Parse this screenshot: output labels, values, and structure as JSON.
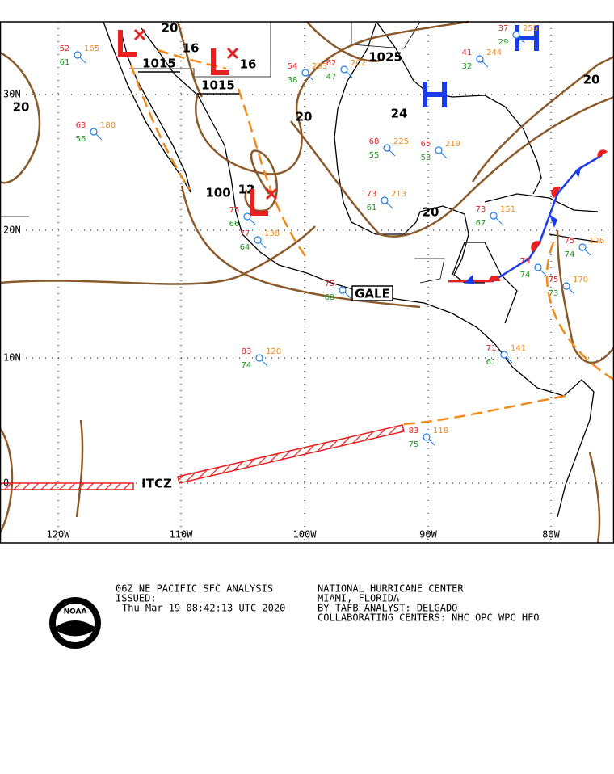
{
  "map": {
    "lat_labels": [
      "30N",
      "20N",
      "10N",
      "0"
    ],
    "lon_labels": [
      "120W",
      "110W",
      "100W",
      "90W",
      "80W"
    ],
    "isobar_labels": [
      "20",
      "16",
      "16",
      "20",
      "20",
      "24",
      "20",
      "20",
      "1025",
      "100",
      "12"
    ],
    "pressure_centers": [
      {
        "type": "L",
        "value": "1015"
      },
      {
        "type": "L",
        "value": "1015"
      },
      {
        "type": "L"
      },
      {
        "type": "H"
      },
      {
        "type": "H"
      }
    ],
    "feature_labels": [
      "ITCZ",
      "GALE"
    ],
    "stations": [
      {
        "temp": "63",
        "pressure": "180",
        "dew": "56"
      },
      {
        "temp": "75",
        "dew": "66"
      },
      {
        "temp": "77",
        "pressure": "138",
        "dew": "64"
      },
      {
        "temp": "83",
        "pressure": "120",
        "dew": "74"
      },
      {
        "temp": "75",
        "dew": "68"
      },
      {
        "temp": "73",
        "pressure": "213",
        "dew": "61"
      },
      {
        "temp": "68",
        "pressure": "225",
        "dew": "55"
      },
      {
        "temp": "65",
        "pressure": "219",
        "dew": "53"
      },
      {
        "temp": "83",
        "pressure": "118",
        "dew": "75"
      },
      {
        "temp": "71",
        "pressure": "141",
        "dew": "61"
      },
      {
        "temp": "75",
        "pressure": "170",
        "dew": "73"
      },
      {
        "temp": "75",
        "pressure": "126",
        "dew": "74"
      },
      {
        "temp": "79",
        "dew": "74"
      },
      {
        "temp": "54",
        "pressure": "203",
        "dew": "38"
      },
      {
        "temp": "62",
        "pressure": "202",
        "dew": "47"
      },
      {
        "temp": "41",
        "pressure": "244",
        "dew": "32"
      },
      {
        "temp": "37",
        "pressure": "255",
        "dew": "29"
      },
      {
        "temp": "52",
        "pressure": "165",
        "dew": "61"
      },
      {
        "temp": "73",
        "pressure": "151",
        "dew": "67"
      }
    ]
  },
  "footer": {
    "product": "06Z NE PACIFIC SFC ANALYSIS",
    "issued": "ISSUED:",
    "time": "Thu Mar 19 08:42:13 UTC 2020",
    "center": "NATIONAL HURRICANE CENTER",
    "location": "MIAMI, FLORIDA",
    "analyst": "BY TAFB ANALYST: DELGADO",
    "collaborating": "COLLABORATING CENTERS: NHC OPC WPC HFO",
    "logo": "NOAA"
  }
}
